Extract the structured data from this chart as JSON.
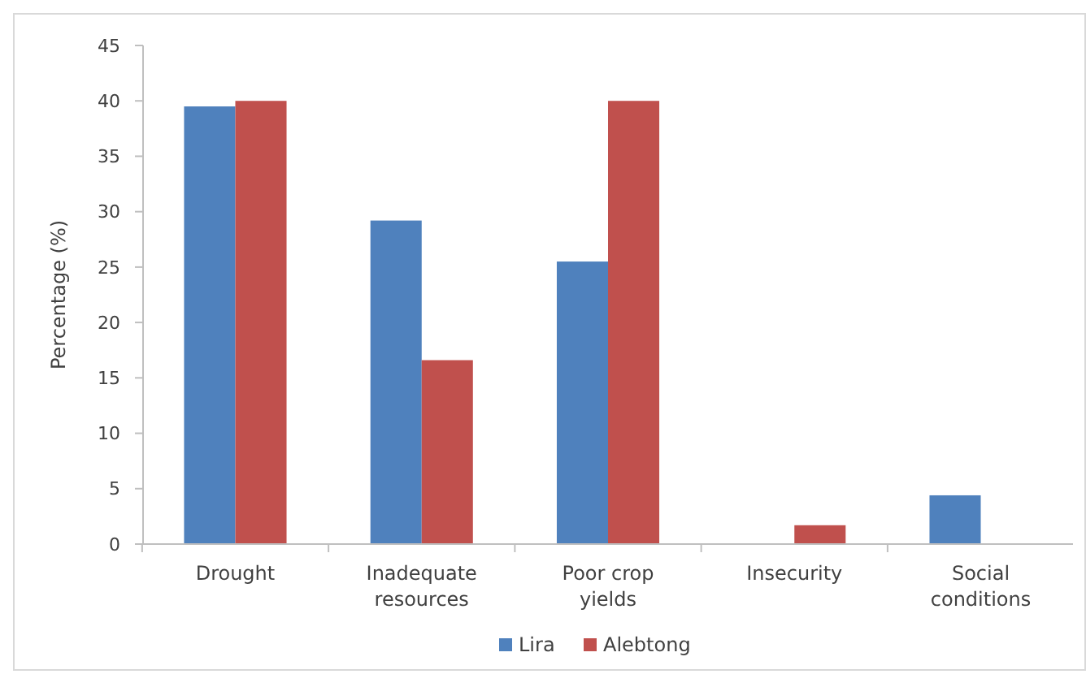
{
  "chart_data": {
    "type": "bar",
    "ylabel": "Percentage (%)",
    "categories": [
      "Drought",
      "Inadequate resources",
      "Poor crop yields",
      "Insecurity",
      "Social conditions"
    ],
    "series": [
      {
        "name": "Lira",
        "color": "#4f81bd",
        "values": [
          39.5,
          29.2,
          25.5,
          0,
          4.4
        ]
      },
      {
        "name": "Alebtong",
        "color": "#c0504d",
        "values": [
          40,
          16.6,
          40,
          1.7,
          0
        ]
      }
    ],
    "ylim": [
      0,
      45
    ],
    "yticks": [
      0,
      5,
      10,
      15,
      20,
      25,
      30,
      35,
      40,
      45
    ],
    "grid": false,
    "legend": "bottom"
  }
}
